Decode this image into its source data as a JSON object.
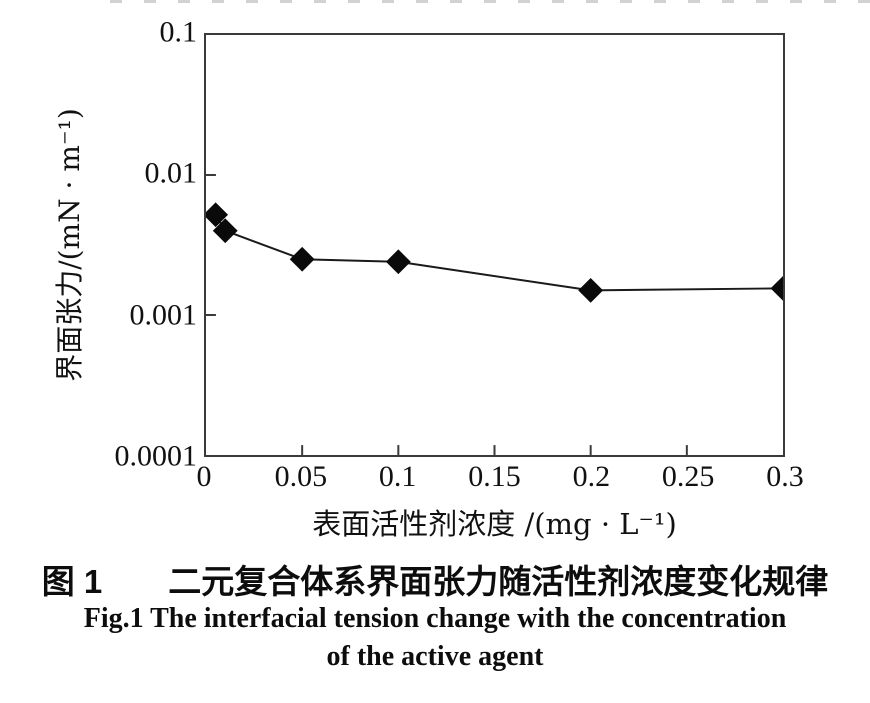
{
  "figure": {
    "background": "#ffffff",
    "axis_color": "#3a3a3a",
    "text_color": "#111111"
  },
  "chart_data": {
    "type": "line",
    "marker": "diamond",
    "x": [
      0.005,
      0.01,
      0.05,
      0.1,
      0.2,
      0.3
    ],
    "y": [
      0.0052,
      0.004,
      0.0025,
      0.0024,
      0.0015,
      0.00155
    ],
    "xlabel": "表面活性剂浓度 /(mg · L⁻¹)",
    "ylabel": "界面张力/(mN · m⁻¹)",
    "xlim": [
      0,
      0.3
    ],
    "ylim": [
      0.0001,
      0.1
    ],
    "y_scale": "log",
    "x_ticks": [
      0,
      0.05,
      0.1,
      0.15,
      0.2,
      0.25,
      0.3
    ],
    "x_tick_labels": [
      "0",
      "0.05",
      "0.1",
      "0.15",
      "0.2",
      "0.25",
      "0.3"
    ],
    "y_ticks": [
      0.1,
      0.01,
      0.001,
      0.0001
    ],
    "y_tick_labels": [
      "0.1",
      "0.01",
      "0.001",
      "0.0001"
    ],
    "grid": false,
    "legend": null,
    "line_color": "#1a1a1a",
    "marker_color": "#0a0a0a"
  },
  "caption": {
    "zh": "图 1　　二元复合体系界面张力随活性剂浓度变化规律",
    "en_line1": "Fig.1 The interfacial tension change with the concentration",
    "en_line2": "of the active agent"
  }
}
